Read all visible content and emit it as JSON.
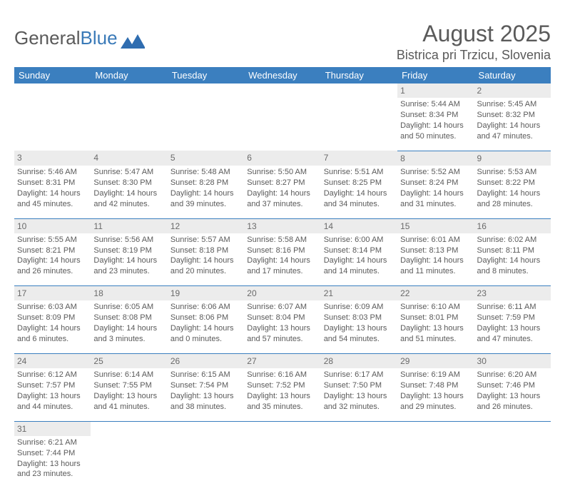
{
  "logo": {
    "text1": "General",
    "text2": "Blue"
  },
  "title": "August 2025",
  "location": "Bistrica pri Trzicu, Slovenia",
  "colors": {
    "header_bg": "#3b7fbf",
    "header_fg": "#ffffff",
    "daynum_bg": "#ececec",
    "text": "#5a5a5a",
    "rule": "#3b7fbf"
  },
  "weekdays": [
    "Sunday",
    "Monday",
    "Tuesday",
    "Wednesday",
    "Thursday",
    "Friday",
    "Saturday"
  ],
  "weeks": [
    [
      null,
      null,
      null,
      null,
      null,
      {
        "n": "1",
        "sr": "Sunrise: 5:44 AM",
        "ss": "Sunset: 8:34 PM",
        "dl": "Daylight: 14 hours and 50 minutes."
      },
      {
        "n": "2",
        "sr": "Sunrise: 5:45 AM",
        "ss": "Sunset: 8:32 PM",
        "dl": "Daylight: 14 hours and 47 minutes."
      }
    ],
    [
      {
        "n": "3",
        "sr": "Sunrise: 5:46 AM",
        "ss": "Sunset: 8:31 PM",
        "dl": "Daylight: 14 hours and 45 minutes."
      },
      {
        "n": "4",
        "sr": "Sunrise: 5:47 AM",
        "ss": "Sunset: 8:30 PM",
        "dl": "Daylight: 14 hours and 42 minutes."
      },
      {
        "n": "5",
        "sr": "Sunrise: 5:48 AM",
        "ss": "Sunset: 8:28 PM",
        "dl": "Daylight: 14 hours and 39 minutes."
      },
      {
        "n": "6",
        "sr": "Sunrise: 5:50 AM",
        "ss": "Sunset: 8:27 PM",
        "dl": "Daylight: 14 hours and 37 minutes."
      },
      {
        "n": "7",
        "sr": "Sunrise: 5:51 AM",
        "ss": "Sunset: 8:25 PM",
        "dl": "Daylight: 14 hours and 34 minutes."
      },
      {
        "n": "8",
        "sr": "Sunrise: 5:52 AM",
        "ss": "Sunset: 8:24 PM",
        "dl": "Daylight: 14 hours and 31 minutes."
      },
      {
        "n": "9",
        "sr": "Sunrise: 5:53 AM",
        "ss": "Sunset: 8:22 PM",
        "dl": "Daylight: 14 hours and 28 minutes."
      }
    ],
    [
      {
        "n": "10",
        "sr": "Sunrise: 5:55 AM",
        "ss": "Sunset: 8:21 PM",
        "dl": "Daylight: 14 hours and 26 minutes."
      },
      {
        "n": "11",
        "sr": "Sunrise: 5:56 AM",
        "ss": "Sunset: 8:19 PM",
        "dl": "Daylight: 14 hours and 23 minutes."
      },
      {
        "n": "12",
        "sr": "Sunrise: 5:57 AM",
        "ss": "Sunset: 8:18 PM",
        "dl": "Daylight: 14 hours and 20 minutes."
      },
      {
        "n": "13",
        "sr": "Sunrise: 5:58 AM",
        "ss": "Sunset: 8:16 PM",
        "dl": "Daylight: 14 hours and 17 minutes."
      },
      {
        "n": "14",
        "sr": "Sunrise: 6:00 AM",
        "ss": "Sunset: 8:14 PM",
        "dl": "Daylight: 14 hours and 14 minutes."
      },
      {
        "n": "15",
        "sr": "Sunrise: 6:01 AM",
        "ss": "Sunset: 8:13 PM",
        "dl": "Daylight: 14 hours and 11 minutes."
      },
      {
        "n": "16",
        "sr": "Sunrise: 6:02 AM",
        "ss": "Sunset: 8:11 PM",
        "dl": "Daylight: 14 hours and 8 minutes."
      }
    ],
    [
      {
        "n": "17",
        "sr": "Sunrise: 6:03 AM",
        "ss": "Sunset: 8:09 PM",
        "dl": "Daylight: 14 hours and 6 minutes."
      },
      {
        "n": "18",
        "sr": "Sunrise: 6:05 AM",
        "ss": "Sunset: 8:08 PM",
        "dl": "Daylight: 14 hours and 3 minutes."
      },
      {
        "n": "19",
        "sr": "Sunrise: 6:06 AM",
        "ss": "Sunset: 8:06 PM",
        "dl": "Daylight: 14 hours and 0 minutes."
      },
      {
        "n": "20",
        "sr": "Sunrise: 6:07 AM",
        "ss": "Sunset: 8:04 PM",
        "dl": "Daylight: 13 hours and 57 minutes."
      },
      {
        "n": "21",
        "sr": "Sunrise: 6:09 AM",
        "ss": "Sunset: 8:03 PM",
        "dl": "Daylight: 13 hours and 54 minutes."
      },
      {
        "n": "22",
        "sr": "Sunrise: 6:10 AM",
        "ss": "Sunset: 8:01 PM",
        "dl": "Daylight: 13 hours and 51 minutes."
      },
      {
        "n": "23",
        "sr": "Sunrise: 6:11 AM",
        "ss": "Sunset: 7:59 PM",
        "dl": "Daylight: 13 hours and 47 minutes."
      }
    ],
    [
      {
        "n": "24",
        "sr": "Sunrise: 6:12 AM",
        "ss": "Sunset: 7:57 PM",
        "dl": "Daylight: 13 hours and 44 minutes."
      },
      {
        "n": "25",
        "sr": "Sunrise: 6:14 AM",
        "ss": "Sunset: 7:55 PM",
        "dl": "Daylight: 13 hours and 41 minutes."
      },
      {
        "n": "26",
        "sr": "Sunrise: 6:15 AM",
        "ss": "Sunset: 7:54 PM",
        "dl": "Daylight: 13 hours and 38 minutes."
      },
      {
        "n": "27",
        "sr": "Sunrise: 6:16 AM",
        "ss": "Sunset: 7:52 PM",
        "dl": "Daylight: 13 hours and 35 minutes."
      },
      {
        "n": "28",
        "sr": "Sunrise: 6:17 AM",
        "ss": "Sunset: 7:50 PM",
        "dl": "Daylight: 13 hours and 32 minutes."
      },
      {
        "n": "29",
        "sr": "Sunrise: 6:19 AM",
        "ss": "Sunset: 7:48 PM",
        "dl": "Daylight: 13 hours and 29 minutes."
      },
      {
        "n": "30",
        "sr": "Sunrise: 6:20 AM",
        "ss": "Sunset: 7:46 PM",
        "dl": "Daylight: 13 hours and 26 minutes."
      }
    ],
    [
      {
        "n": "31",
        "sr": "Sunrise: 6:21 AM",
        "ss": "Sunset: 7:44 PM",
        "dl": "Daylight: 13 hours and 23 minutes."
      },
      null,
      null,
      null,
      null,
      null,
      null
    ]
  ]
}
